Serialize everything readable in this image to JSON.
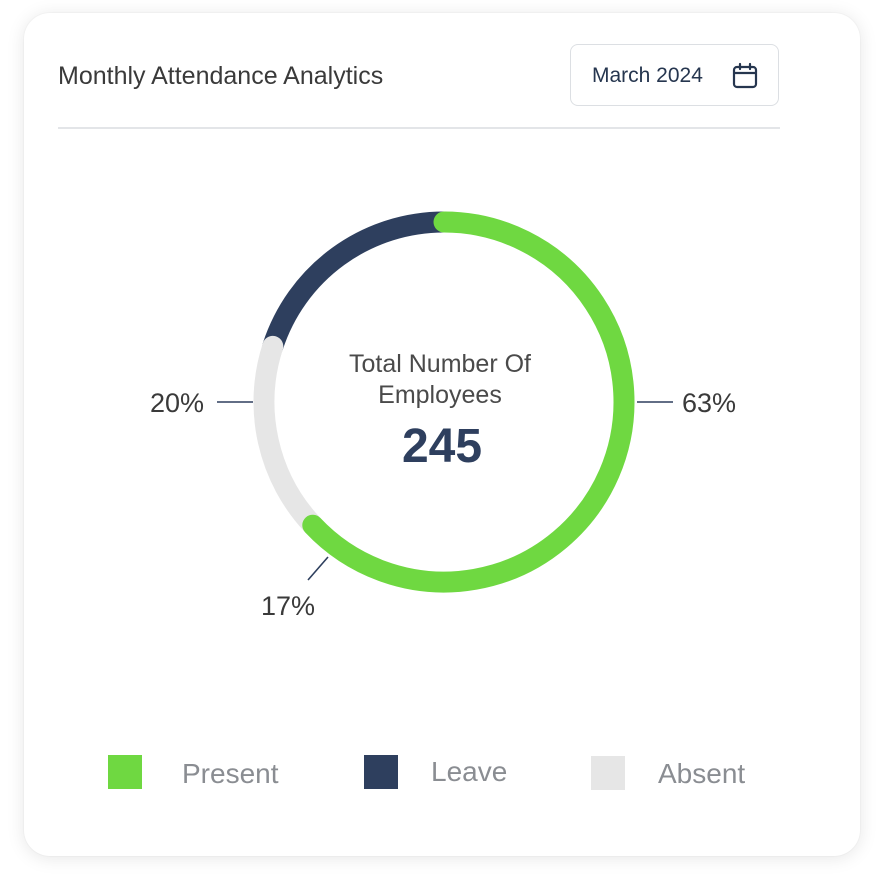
{
  "header": {
    "title": "Monthly Attendance Analytics",
    "date_label": "March 2024",
    "date_icon": "calendar-icon"
  },
  "center": {
    "line1": "Total Number Of",
    "line2": "Employees",
    "total": "245"
  },
  "colors": {
    "present": "#6fd841",
    "leave": "#2e3f5e",
    "absent": "#e6e6e6"
  },
  "chart_data": {
    "type": "pie",
    "donut": true,
    "title": "",
    "slices": [
      {
        "name": "Present",
        "value": 63,
        "label": "63%",
        "color": "#6fd841"
      },
      {
        "name": "Absent",
        "value": 17,
        "label": "17%",
        "color": "#e6e6e6"
      },
      {
        "name": "Leave",
        "value": 20,
        "label": "20%",
        "color": "#2e3f5e"
      }
    ],
    "legend_position": "bottom",
    "legend": [
      "Present",
      "Leave",
      "Absent"
    ]
  }
}
